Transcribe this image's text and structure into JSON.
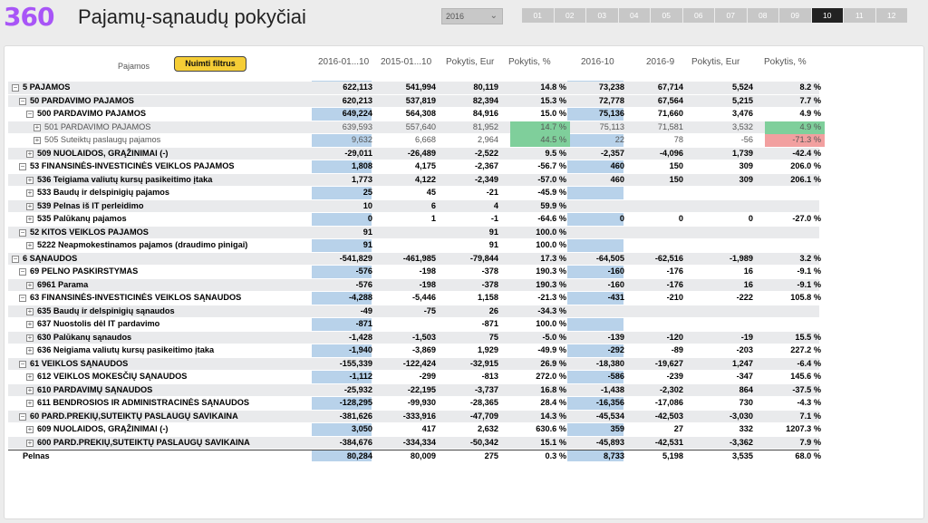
{
  "app": {
    "logo": "360",
    "title": "Pajamų-sąnaudų pokyčiai"
  },
  "year_select": {
    "value": "2016"
  },
  "months": [
    "01",
    "02",
    "03",
    "04",
    "05",
    "06",
    "07",
    "08",
    "09",
    "10",
    "11",
    "12"
  ],
  "active_month": "10",
  "table": {
    "filter_label": "Pajamos",
    "clear_button": "Nuimti filtrus",
    "headers": [
      "2016-01...10",
      "2015-01...10",
      "Pokytis, Eur",
      "Pokytis, %",
      "2016-10",
      "2016-9",
      "Pokytis, Eur",
      "Pokytis, %"
    ],
    "rows": [
      {
        "label": "5 PAJAMOS",
        "indent": 0,
        "toggle": "−",
        "bold": true,
        "shade": true,
        "values": [
          "622,113",
          "541,994",
          "80,119",
          "14.8 %",
          "73,238",
          "67,714",
          "5,524",
          "8.2 %"
        ]
      },
      {
        "label": "50 PARDAVIMO PAJAMOS",
        "indent": 1,
        "toggle": "−",
        "bold": true,
        "shade": true,
        "values": [
          "620,213",
          "537,819",
          "82,394",
          "15.3 %",
          "72,778",
          "67,564",
          "5,215",
          "7.7 %"
        ]
      },
      {
        "label": "500 PARDAVIMO PAJAMOS",
        "indent": 2,
        "toggle": "−",
        "bold": true,
        "shade": false,
        "values": [
          "649,224",
          "564,308",
          "84,916",
          "15.0 %",
          "75,136",
          "71,660",
          "3,476",
          "4.9 %"
        ]
      },
      {
        "label": "501 PARDAVIMO PAJAMOS",
        "indent": 3,
        "toggle": "+",
        "bold": false,
        "shade": true,
        "values": [
          "639,593",
          "557,640",
          "81,952",
          "14.7 %",
          "75,113",
          "71,581",
          "3,532",
          "4.9 %"
        ],
        "hl3": "green",
        "hl7": "green"
      },
      {
        "label": "505 Suteiktų paslaugų pajamos",
        "indent": 3,
        "toggle": "+",
        "bold": false,
        "shade": false,
        "values": [
          "9,632",
          "6,668",
          "2,964",
          "44.5 %",
          "22",
          "78",
          "-56",
          "-71.3 %"
        ],
        "hl3": "green",
        "hl7": "red"
      },
      {
        "label": "509 NUOLAIDOS, GRĄŽINIMAI (-)",
        "indent": 2,
        "toggle": "+",
        "bold": true,
        "shade": true,
        "values": [
          "-29,011",
          "-26,489",
          "-2,522",
          "9.5 %",
          "-2,357",
          "-4,096",
          "1,739",
          "-42.4 %"
        ]
      },
      {
        "label": "53 FINANSINĖS-INVESTICINĖS VEIKLOS PAJAMOS",
        "indent": 1,
        "toggle": "−",
        "bold": true,
        "shade": false,
        "values": [
          "1,808",
          "4,175",
          "-2,367",
          "-56.7 %",
          "460",
          "150",
          "309",
          "206.0 %"
        ]
      },
      {
        "label": "536 Teigiama valiutų kursų pasikeitimo įtaka",
        "indent": 2,
        "toggle": "+",
        "bold": true,
        "shade": true,
        "values": [
          "1,773",
          "4,122",
          "-2,349",
          "-57.0 %",
          "460",
          "150",
          "309",
          "206.1 %"
        ]
      },
      {
        "label": "533 Baudų ir delspinigių pajamos",
        "indent": 2,
        "toggle": "+",
        "bold": true,
        "shade": false,
        "values": [
          "25",
          "45",
          "-21",
          "-45.9 %",
          "",
          "",
          "",
          ""
        ]
      },
      {
        "label": "539 Pelnas iš IT perleidimo",
        "indent": 2,
        "toggle": "+",
        "bold": true,
        "shade": true,
        "values": [
          "10",
          "6",
          "4",
          "59.9 %",
          "",
          "",
          "",
          ""
        ]
      },
      {
        "label": "535 Palūkanų pajamos",
        "indent": 2,
        "toggle": "+",
        "bold": true,
        "shade": false,
        "values": [
          "0",
          "1",
          "-1",
          "-64.6 %",
          "0",
          "0",
          "0",
          "-27.0 %"
        ]
      },
      {
        "label": "52 KITOS VEIKLOS PAJAMOS",
        "indent": 1,
        "toggle": "−",
        "bold": true,
        "shade": true,
        "values": [
          "91",
          "",
          "91",
          "100.0 %",
          "",
          "",
          "",
          ""
        ]
      },
      {
        "label": "5222 Neapmokestinamos pajamos (draudimo pinigai)",
        "indent": 2,
        "toggle": "+",
        "bold": true,
        "shade": false,
        "values": [
          "91",
          "",
          "91",
          "100.0 %",
          "",
          "",
          "",
          ""
        ]
      },
      {
        "label": "6 SĄNAUDOS",
        "indent": 0,
        "toggle": "−",
        "bold": true,
        "shade": true,
        "values": [
          "-541,829",
          "-461,985",
          "-79,844",
          "17.3 %",
          "-64,505",
          "-62,516",
          "-1,989",
          "3.2 %"
        ]
      },
      {
        "label": "69 PELNO PASKIRSTYMAS",
        "indent": 1,
        "toggle": "−",
        "bold": true,
        "shade": false,
        "values": [
          "-576",
          "-198",
          "-378",
          "190.3 %",
          "-160",
          "-176",
          "16",
          "-9.1 %"
        ]
      },
      {
        "label": "6961 Parama",
        "indent": 2,
        "toggle": "+",
        "bold": true,
        "shade": true,
        "values": [
          "-576",
          "-198",
          "-378",
          "190.3 %",
          "-160",
          "-176",
          "16",
          "-9.1 %"
        ]
      },
      {
        "label": "63 FINANSINĖS-INVESTICINĖS VEIKLOS SĄNAUDOS",
        "indent": 1,
        "toggle": "−",
        "bold": true,
        "shade": false,
        "values": [
          "-4,288",
          "-5,446",
          "1,158",
          "-21.3 %",
          "-431",
          "-210",
          "-222",
          "105.8 %"
        ]
      },
      {
        "label": "635 Baudų ir delspinigių sąnaudos",
        "indent": 2,
        "toggle": "+",
        "bold": true,
        "shade": true,
        "values": [
          "-49",
          "-75",
          "26",
          "-34.3 %",
          "",
          "",
          "",
          ""
        ]
      },
      {
        "label": "637 Nuostolis dėl IT pardavimo",
        "indent": 2,
        "toggle": "+",
        "bold": true,
        "shade": false,
        "values": [
          "-871",
          "",
          "-871",
          "100.0 %",
          "",
          "",
          "",
          ""
        ]
      },
      {
        "label": "630 Palūkanų sąnaudos",
        "indent": 2,
        "toggle": "+",
        "bold": true,
        "shade": true,
        "values": [
          "-1,428",
          "-1,503",
          "75",
          "-5.0 %",
          "-139",
          "-120",
          "-19",
          "15.5 %"
        ]
      },
      {
        "label": "636 Neigiama valiutų kursų pasikeitimo įtaka",
        "indent": 2,
        "toggle": "+",
        "bold": true,
        "shade": false,
        "values": [
          "-1,940",
          "-3,869",
          "1,929",
          "-49.9 %",
          "-292",
          "-89",
          "-203",
          "227.2 %"
        ]
      },
      {
        "label": "61 VEIKLOS SĄNAUDOS",
        "indent": 1,
        "toggle": "−",
        "bold": true,
        "shade": true,
        "values": [
          "-155,339",
          "-122,424",
          "-32,915",
          "26.9 %",
          "-18,380",
          "-19,627",
          "1,247",
          "-6.4 %"
        ]
      },
      {
        "label": "612 VEIKLOS MOKESČIŲ SĄNAUDOS",
        "indent": 2,
        "toggle": "+",
        "bold": true,
        "shade": false,
        "values": [
          "-1,112",
          "-299",
          "-813",
          "272.0 %",
          "-586",
          "-239",
          "-347",
          "145.6 %"
        ]
      },
      {
        "label": "610 PARDAVIMŲ SĄNAUDOS",
        "indent": 2,
        "toggle": "+",
        "bold": true,
        "shade": true,
        "values": [
          "-25,932",
          "-22,195",
          "-3,737",
          "16.8 %",
          "-1,438",
          "-2,302",
          "864",
          "-37.5 %"
        ]
      },
      {
        "label": "611 BENDROSIOS IR ADMINISTRACINĖS SĄNAUDOS",
        "indent": 2,
        "toggle": "+",
        "bold": true,
        "shade": false,
        "values": [
          "-128,295",
          "-99,930",
          "-28,365",
          "28.4 %",
          "-16,356",
          "-17,086",
          "730",
          "-4.3 %"
        ]
      },
      {
        "label": "60 PARD.PREKIŲ,SUTEIKTŲ PASLAUGŲ SAVIKAINA",
        "indent": 1,
        "toggle": "−",
        "bold": true,
        "shade": true,
        "values": [
          "-381,626",
          "-333,916",
          "-47,709",
          "14.3 %",
          "-45,534",
          "-42,503",
          "-3,030",
          "7.1 %"
        ]
      },
      {
        "label": "609 NUOLAIDOS, GRĄŽINIMAI (-)",
        "indent": 2,
        "toggle": "+",
        "bold": true,
        "shade": false,
        "values": [
          "3,050",
          "417",
          "2,632",
          "630.6 %",
          "359",
          "27",
          "332",
          "1207.3 %"
        ]
      },
      {
        "label": "600 PARD.PREKIŲ,SUTEIKTŲ PASLAUGŲ SAVIKAINA",
        "indent": 2,
        "toggle": "+",
        "bold": true,
        "shade": true,
        "values": [
          "-384,676",
          "-334,334",
          "-50,342",
          "15.1 %",
          "-45,893",
          "-42,531",
          "-3,362",
          "7.9 %"
        ]
      },
      {
        "label": "Pelnas",
        "indent": 0,
        "toggle": "",
        "bold": true,
        "shade": false,
        "values": [
          "80,284",
          "80,009",
          "275",
          "0.3 %",
          "8,733",
          "5,198",
          "3,535",
          "68.0 %"
        ]
      }
    ]
  },
  "colors": {
    "accent": "#a855f7",
    "highlight_col": "#b8d2ea",
    "green": "#7fcf9b",
    "red": "#f2a0a0",
    "button": "#f5cd36"
  }
}
